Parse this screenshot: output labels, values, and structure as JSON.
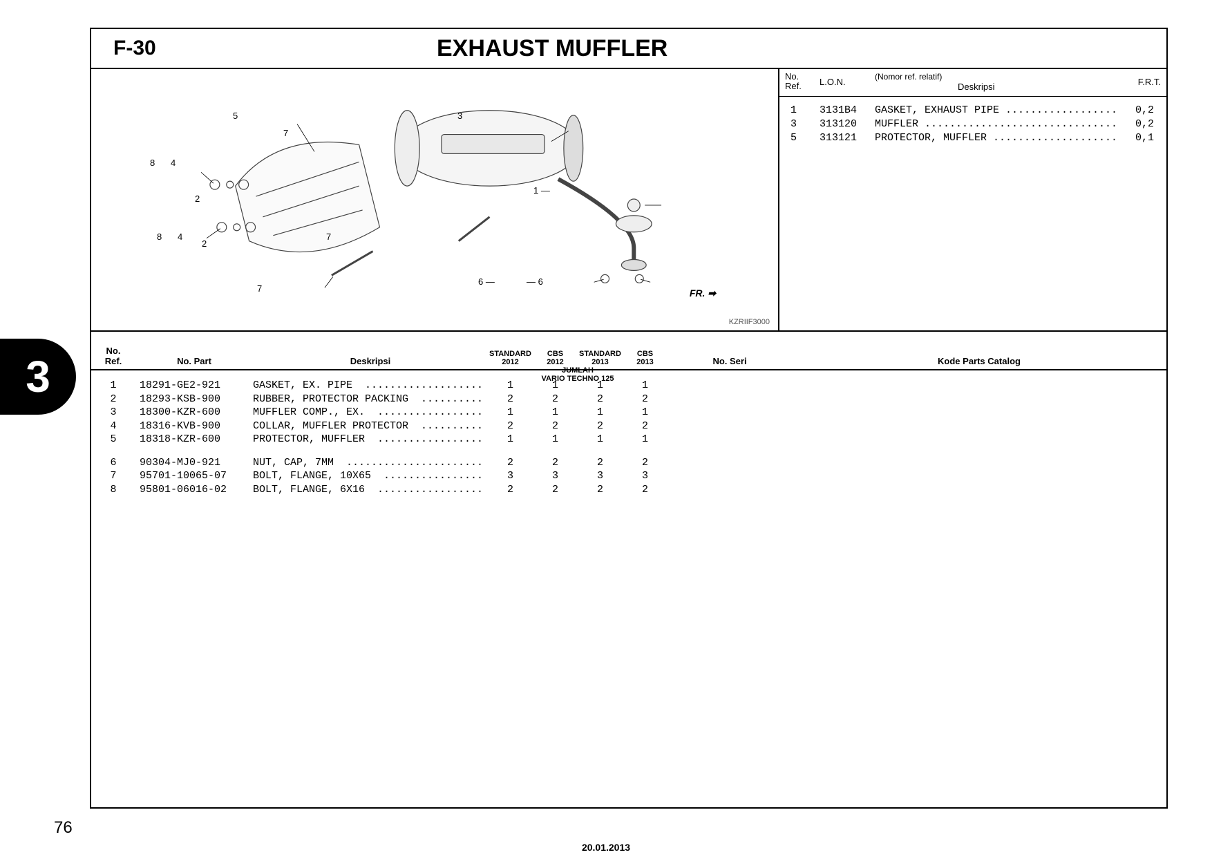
{
  "header": {
    "section_code": "F-30",
    "title": "EXHAUST MUFFLER"
  },
  "diagram": {
    "code": "KZRIIF3000",
    "fr_label": "FR.",
    "callouts": [
      "1",
      "2",
      "3",
      "4",
      "5",
      "6",
      "7",
      "8"
    ]
  },
  "ref_panel": {
    "headers": {
      "no_ref": "No.\nRef.",
      "lon": "L.O.N.",
      "desc_super": "(Nomor ref. relatif)",
      "desc": "Deskripsi",
      "frt": "F.R.T."
    },
    "rows": [
      {
        "ref": "1",
        "lon": "3131B4",
        "desc": "GASKET, EXHAUST PIPE ......................",
        "frt": "0,2"
      },
      {
        "ref": "3",
        "lon": "313120",
        "desc": "MUFFLER ...................................",
        "frt": "0,2"
      },
      {
        "ref": "5",
        "lon": "313121",
        "desc": "PROTECTOR, MUFFLER ........................",
        "frt": "0,1"
      }
    ]
  },
  "parts_table": {
    "headers": {
      "no_ref": "No.\nRef.",
      "no_part": "No. Part",
      "deskripsi": "Deskripsi",
      "jumlah": "JUMLAH",
      "model": "VARIO TECHNO 125",
      "cols": [
        "STANDARD\n2012",
        "CBS\n2012",
        "STANDARD\n2013",
        "CBS\n2013"
      ],
      "no_seri": "No. Seri",
      "kode": "Kode Parts Catalog"
    },
    "rows": [
      {
        "ref": "1",
        "part": "18291-GE2-921",
        "desc": "GASKET, EX. PIPE  ...................",
        "qty": [
          "1",
          "1",
          "1",
          "1"
        ]
      },
      {
        "ref": "2",
        "part": "18293-KSB-900",
        "desc": "RUBBER, PROTECTOR PACKING  ..........",
        "qty": [
          "2",
          "2",
          "2",
          "2"
        ]
      },
      {
        "ref": "3",
        "part": "18300-KZR-600",
        "desc": "MUFFLER COMP., EX.  .................",
        "qty": [
          "1",
          "1",
          "1",
          "1"
        ]
      },
      {
        "ref": "4",
        "part": "18316-KVB-900",
        "desc": "COLLAR, MUFFLER PROTECTOR  ..........",
        "qty": [
          "2",
          "2",
          "2",
          "2"
        ]
      },
      {
        "ref": "5",
        "part": "18318-KZR-600",
        "desc": "PROTECTOR, MUFFLER  .................",
        "qty": [
          "1",
          "1",
          "1",
          "1"
        ]
      },
      {
        "ref": "6",
        "part": "90304-MJ0-921",
        "desc": "NUT, CAP, 7MM  ......................",
        "qty": [
          "2",
          "2",
          "2",
          "2"
        ],
        "gap": true
      },
      {
        "ref": "7",
        "part": "95701-10065-07",
        "desc": "BOLT, FLANGE, 10X65  ................",
        "qty": [
          "3",
          "3",
          "3",
          "3"
        ]
      },
      {
        "ref": "8",
        "part": "95801-06016-02",
        "desc": "BOLT, FLANGE, 6X16  .................",
        "qty": [
          "2",
          "2",
          "2",
          "2"
        ]
      }
    ]
  },
  "side_tab": "3",
  "page_number": "76",
  "footer_date": "20.01.2013",
  "colors": {
    "border": "#000000",
    "text": "#000000",
    "background": "#ffffff",
    "tab_bg": "#000000",
    "tab_fg": "#ffffff"
  }
}
